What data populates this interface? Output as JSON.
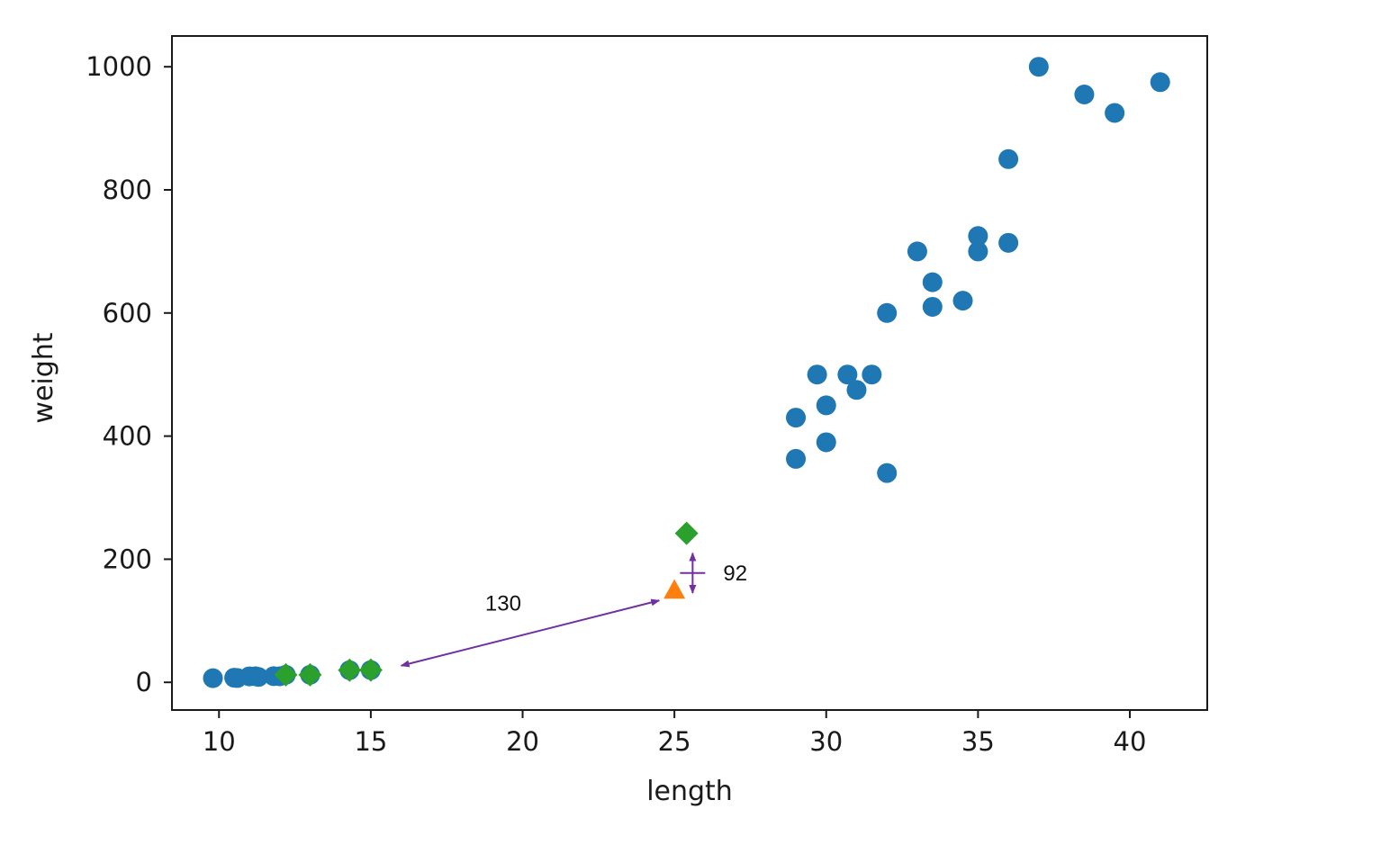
{
  "chart_data": {
    "type": "scatter",
    "title": "",
    "xlabel": "length",
    "ylabel": "weight",
    "xlim": [
      8.45,
      42.55
    ],
    "ylim": [
      -45,
      1050
    ],
    "xticks": [
      10,
      15,
      20,
      25,
      30,
      35,
      40
    ],
    "yticks": [
      0,
      200,
      400,
      600,
      800,
      1000
    ],
    "xtick_labels": [
      "10",
      "15",
      "20",
      "25",
      "30",
      "35",
      "40"
    ],
    "ytick_labels": [
      "0",
      "200",
      "400",
      "600",
      "800",
      "1000"
    ],
    "grid": false,
    "legend": "none",
    "series": [
      {
        "marker": "circle",
        "color": "#1f77b4",
        "points": [
          [
            9.8,
            6.7
          ],
          [
            10.5,
            7.5
          ],
          [
            10.6,
            7.0
          ],
          [
            11.0,
            9.7
          ],
          [
            11.2,
            9.8
          ],
          [
            11.3,
            8.7
          ],
          [
            11.8,
            10.0
          ],
          [
            12.0,
            9.8
          ],
          [
            12.2,
            12.2
          ],
          [
            13.0,
            12.2
          ],
          [
            14.3,
            19.7
          ],
          [
            15.0,
            19.9
          ],
          [
            29.0,
            363
          ],
          [
            29.0,
            430
          ],
          [
            29.7,
            500
          ],
          [
            30.0,
            390
          ],
          [
            30.0,
            450
          ],
          [
            30.7,
            500
          ],
          [
            31.0,
            475
          ],
          [
            31.5,
            500
          ],
          [
            32.0,
            340
          ],
          [
            32.0,
            600
          ],
          [
            33.0,
            700
          ],
          [
            33.5,
            610
          ],
          [
            33.5,
            650
          ],
          [
            34.5,
            620
          ],
          [
            35.0,
            700
          ],
          [
            35.0,
            725
          ],
          [
            36.0,
            714
          ],
          [
            36.0,
            850
          ],
          [
            37.0,
            1000
          ],
          [
            38.5,
            955
          ],
          [
            39.5,
            925
          ],
          [
            41.0,
            975
          ]
        ]
      },
      {
        "marker": "diamond",
        "color": "#2ca02c",
        "points": [
          [
            12.2,
            12.2
          ],
          [
            13.0,
            12.2
          ],
          [
            14.3,
            19.7
          ],
          [
            15.0,
            19.9
          ],
          [
            25.4,
            242
          ]
        ]
      },
      {
        "marker": "triangle",
        "color": "#ff7f0e",
        "points": [
          [
            25.0,
            150
          ]
        ]
      }
    ],
    "annotations": [
      {
        "type": "double-arrow",
        "from": [
          16.0,
          27
        ],
        "to": [
          24.5,
          133
        ],
        "label": "130",
        "color": "#7030a0"
      },
      {
        "type": "double-arrow",
        "from": [
          25.6,
          145
        ],
        "to": [
          25.6,
          210
        ],
        "label": "92",
        "color": "#7030a0"
      }
    ]
  }
}
